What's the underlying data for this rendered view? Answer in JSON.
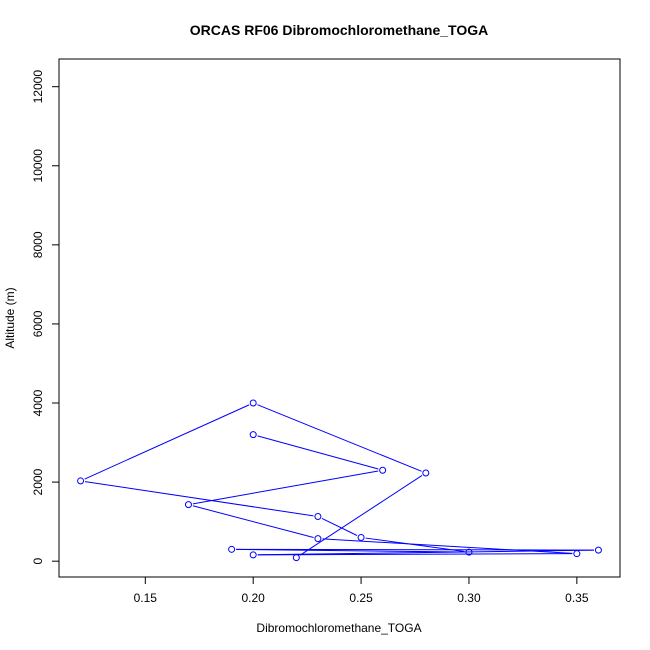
{
  "chart_data": {
    "type": "line",
    "title": "ORCAS RF06 Dibromochloromethane_TOGA",
    "xlabel": "Dibromochloromethane_TOGA",
    "ylabel": "Altitude (m)",
    "xlim": [
      0.11,
      0.37
    ],
    "ylim": [
      -400,
      12700
    ],
    "x_ticks": [
      "0.15",
      "0.20",
      "0.25",
      "0.30",
      "0.35"
    ],
    "y_ticks": [
      "0",
      "2000",
      "4000",
      "6000",
      "8000",
      "10000",
      "12000"
    ],
    "grid": false,
    "legend": "none",
    "line_color": "#0000ff",
    "marker": "open-circle",
    "series": [
      {
        "x": [
          0.22,
          0.28,
          0.2,
          0.12,
          0.23,
          0.25,
          0.3,
          0.19,
          0.36,
          0.2,
          0.35,
          0.23,
          0.17,
          0.26,
          0.2
        ],
        "y": [
          90,
          2230,
          4000,
          2030,
          1130,
          600,
          230,
          300,
          280,
          160,
          190,
          570,
          1430,
          2300,
          3200
        ]
      }
    ]
  }
}
